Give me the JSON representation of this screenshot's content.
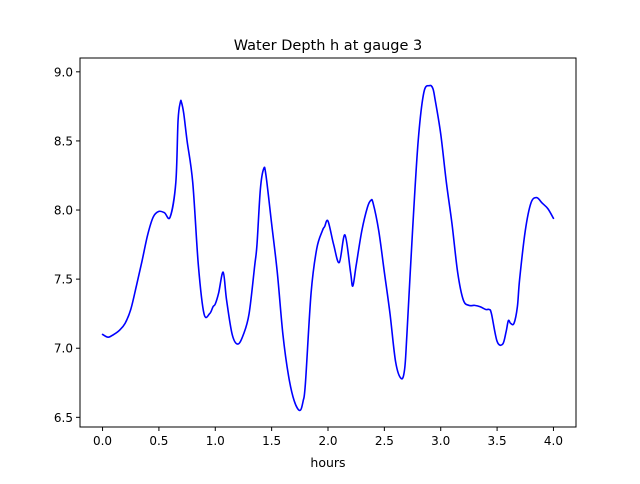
{
  "chart_data": {
    "type": "line",
    "title": "Water Depth h at gauge 3",
    "xlabel": "hours",
    "ylabel": "",
    "xlim": [
      -0.2,
      4.2
    ],
    "ylim": [
      6.43,
      9.1
    ],
    "xticks": [
      0.0,
      0.5,
      1.0,
      1.5,
      2.0,
      2.5,
      3.0,
      3.5,
      4.0
    ],
    "xtick_labels": [
      "0.0",
      "0.5",
      "1.0",
      "1.5",
      "2.0",
      "2.5",
      "3.0",
      "3.5",
      "4.0"
    ],
    "yticks": [
      6.5,
      7.0,
      7.5,
      8.0,
      8.5,
      9.0
    ],
    "ytick_labels": [
      "6.5",
      "7.0",
      "7.5",
      "8.0",
      "8.5",
      "9.0"
    ],
    "grid": false,
    "line_color": "#0000ff",
    "series": [
      {
        "x": [
          0.0,
          0.05,
          0.1,
          0.15,
          0.2,
          0.25,
          0.3,
          0.35,
          0.4,
          0.45,
          0.5,
          0.55,
          0.6,
          0.65,
          0.67,
          0.69,
          0.7,
          0.72,
          0.75,
          0.8,
          0.85,
          0.9,
          0.95,
          0.98,
          1.0,
          1.03,
          1.07,
          1.1,
          1.15,
          1.2,
          1.25,
          1.3,
          1.35,
          1.37,
          1.4,
          1.43,
          1.45,
          1.5,
          1.55,
          1.6,
          1.65,
          1.7,
          1.75,
          1.78,
          1.8,
          1.85,
          1.9,
          1.95,
          1.97,
          2.0,
          2.05,
          2.1,
          2.15,
          2.2,
          2.22,
          2.25,
          2.3,
          2.35,
          2.38,
          2.4,
          2.45,
          2.5,
          2.55,
          2.6,
          2.65,
          2.68,
          2.7,
          2.75,
          2.8,
          2.85,
          2.9,
          2.93,
          2.95,
          3.0,
          3.05,
          3.1,
          3.15,
          3.2,
          3.25,
          3.3,
          3.35,
          3.4,
          3.43,
          3.45,
          3.5,
          3.55,
          3.58,
          3.6,
          3.62,
          3.65,
          3.68,
          3.7,
          3.75,
          3.8,
          3.85,
          3.9,
          3.95,
          4.0
        ],
        "y": [
          7.1,
          7.08,
          7.1,
          7.13,
          7.18,
          7.28,
          7.45,
          7.63,
          7.82,
          7.95,
          7.99,
          7.98,
          7.95,
          8.2,
          8.65,
          8.78,
          8.78,
          8.7,
          8.5,
          8.2,
          7.6,
          7.25,
          7.25,
          7.3,
          7.32,
          7.4,
          7.55,
          7.35,
          7.1,
          7.03,
          7.1,
          7.25,
          7.6,
          7.75,
          8.15,
          8.3,
          8.25,
          7.9,
          7.55,
          7.1,
          6.8,
          6.62,
          6.55,
          6.62,
          6.75,
          7.4,
          7.72,
          7.85,
          7.88,
          7.92,
          7.75,
          7.62,
          7.82,
          7.55,
          7.45,
          7.6,
          7.85,
          8.02,
          8.07,
          8.05,
          7.85,
          7.55,
          7.25,
          6.9,
          6.78,
          6.85,
          7.1,
          7.85,
          8.5,
          8.85,
          8.9,
          8.88,
          8.8,
          8.55,
          8.2,
          7.9,
          7.55,
          7.35,
          7.31,
          7.31,
          7.3,
          7.28,
          7.28,
          7.25,
          7.05,
          7.03,
          7.12,
          7.2,
          7.18,
          7.18,
          7.3,
          7.5,
          7.85,
          8.05,
          8.09,
          8.05,
          8.01,
          7.94
        ]
      }
    ]
  }
}
